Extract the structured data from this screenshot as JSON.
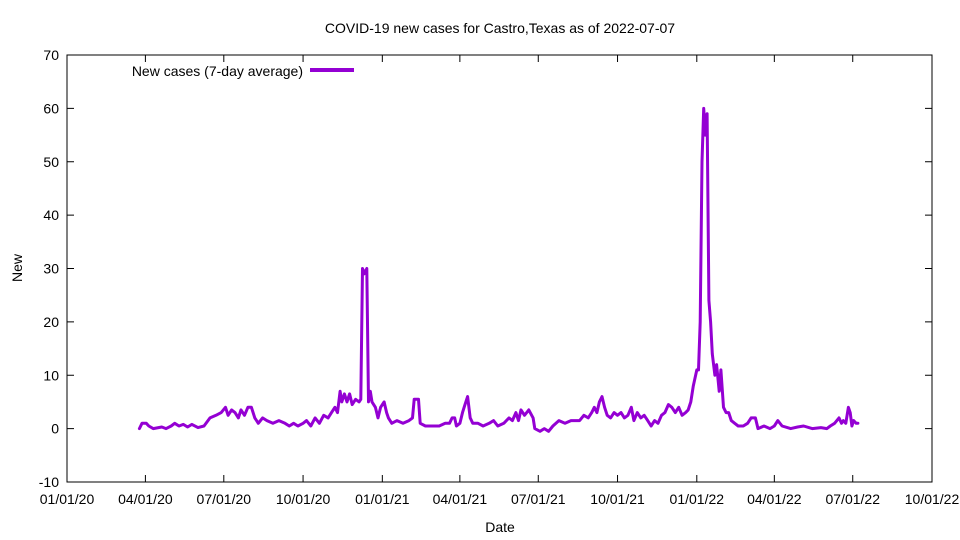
{
  "chart_data": {
    "type": "line",
    "title": "COVID-19 new cases for Castro,Texas as of 2022-07-07",
    "xlabel": "Date",
    "ylabel": "New",
    "xlim": [
      "2020-01-01",
      "2022-10-01"
    ],
    "ylim": [
      -10,
      70
    ],
    "grid": false,
    "legend_position": "top-left",
    "x_ticks": [
      {
        "date": "2020-01-01",
        "label": "01/01/20"
      },
      {
        "date": "2020-04-01",
        "label": "04/01/20"
      },
      {
        "date": "2020-07-01",
        "label": "07/01/20"
      },
      {
        "date": "2020-10-01",
        "label": "10/01/20"
      },
      {
        "date": "2021-01-01",
        "label": "01/01/21"
      },
      {
        "date": "2021-04-01",
        "label": "04/01/21"
      },
      {
        "date": "2021-07-01",
        "label": "07/01/21"
      },
      {
        "date": "2021-10-01",
        "label": "10/01/21"
      },
      {
        "date": "2022-01-01",
        "label": "01/01/22"
      },
      {
        "date": "2022-04-01",
        "label": "04/01/22"
      },
      {
        "date": "2022-07-01",
        "label": "07/01/22"
      },
      {
        "date": "2022-10-01",
        "label": "10/01/22"
      }
    ],
    "y_ticks": [
      -10,
      0,
      10,
      20,
      30,
      40,
      50,
      60,
      70
    ],
    "series": [
      {
        "name": "New cases (7-day average)",
        "color": "#9400d3",
        "points": [
          [
            "2020-03-25",
            0
          ],
          [
            "2020-03-28",
            1
          ],
          [
            "2020-04-02",
            1
          ],
          [
            "2020-04-05",
            0.5
          ],
          [
            "2020-04-10",
            0
          ],
          [
            "2020-04-20",
            0.3
          ],
          [
            "2020-04-25",
            0
          ],
          [
            "2020-05-01",
            0.5
          ],
          [
            "2020-05-05",
            1
          ],
          [
            "2020-05-10",
            0.5
          ],
          [
            "2020-05-15",
            0.8
          ],
          [
            "2020-05-20",
            0.3
          ],
          [
            "2020-05-25",
            0.8
          ],
          [
            "2020-06-01",
            0.2
          ],
          [
            "2020-06-08",
            0.5
          ],
          [
            "2020-06-15",
            2
          ],
          [
            "2020-06-22",
            2.5
          ],
          [
            "2020-06-28",
            3
          ],
          [
            "2020-07-03",
            4
          ],
          [
            "2020-07-06",
            2.5
          ],
          [
            "2020-07-10",
            3.5
          ],
          [
            "2020-07-14",
            3
          ],
          [
            "2020-07-18",
            2
          ],
          [
            "2020-07-21",
            3.5
          ],
          [
            "2020-07-25",
            2.5
          ],
          [
            "2020-07-29",
            4
          ],
          [
            "2020-08-02",
            4
          ],
          [
            "2020-08-06",
            2
          ],
          [
            "2020-08-10",
            1
          ],
          [
            "2020-08-15",
            2
          ],
          [
            "2020-08-20",
            1.5
          ],
          [
            "2020-08-27",
            1
          ],
          [
            "2020-09-03",
            1.5
          ],
          [
            "2020-09-10",
            1
          ],
          [
            "2020-09-15",
            0.5
          ],
          [
            "2020-09-20",
            1
          ],
          [
            "2020-09-25",
            0.5
          ],
          [
            "2020-10-01",
            1
          ],
          [
            "2020-10-05",
            1.5
          ],
          [
            "2020-10-10",
            0.5
          ],
          [
            "2020-10-15",
            2
          ],
          [
            "2020-10-20",
            1
          ],
          [
            "2020-10-25",
            2.5
          ],
          [
            "2020-10-30",
            2
          ],
          [
            "2020-11-03",
            3
          ],
          [
            "2020-11-07",
            4
          ],
          [
            "2020-11-10",
            3
          ],
          [
            "2020-11-13",
            7
          ],
          [
            "2020-11-15",
            5
          ],
          [
            "2020-11-18",
            6.5
          ],
          [
            "2020-11-21",
            5
          ],
          [
            "2020-11-24",
            6.5
          ],
          [
            "2020-11-27",
            4.5
          ],
          [
            "2020-12-01",
            5.5
          ],
          [
            "2020-12-05",
            5
          ],
          [
            "2020-12-07",
            5.5
          ],
          [
            "2020-12-09",
            30
          ],
          [
            "2020-12-11",
            29
          ],
          [
            "2020-12-14",
            30
          ],
          [
            "2020-12-16",
            5
          ],
          [
            "2020-12-18",
            7
          ],
          [
            "2020-12-20",
            5
          ],
          [
            "2020-12-24",
            4
          ],
          [
            "2020-12-27",
            2
          ],
          [
            "2020-12-30",
            4
          ],
          [
            "2021-01-03",
            5
          ],
          [
            "2021-01-06",
            3
          ],
          [
            "2021-01-08",
            2
          ],
          [
            "2021-01-12",
            1
          ],
          [
            "2021-01-18",
            1.5
          ],
          [
            "2021-01-25",
            1
          ],
          [
            "2021-02-01",
            1.5
          ],
          [
            "2021-02-05",
            2
          ],
          [
            "2021-02-07",
            5.5
          ],
          [
            "2021-02-12",
            5.5
          ],
          [
            "2021-02-14",
            1
          ],
          [
            "2021-02-20",
            0.5
          ],
          [
            "2021-02-28",
            0.5
          ],
          [
            "2021-03-08",
            0.5
          ],
          [
            "2021-03-15",
            1
          ],
          [
            "2021-03-20",
            1
          ],
          [
            "2021-03-23",
            2
          ],
          [
            "2021-03-26",
            2
          ],
          [
            "2021-03-28",
            0.5
          ],
          [
            "2021-04-01",
            1
          ],
          [
            "2021-04-04",
            3
          ],
          [
            "2021-04-07",
            4.5
          ],
          [
            "2021-04-10",
            6
          ],
          [
            "2021-04-13",
            2
          ],
          [
            "2021-04-16",
            1
          ],
          [
            "2021-04-22",
            1
          ],
          [
            "2021-04-28",
            0.5
          ],
          [
            "2021-05-05",
            1
          ],
          [
            "2021-05-10",
            1.5
          ],
          [
            "2021-05-15",
            0.5
          ],
          [
            "2021-05-22",
            1
          ],
          [
            "2021-05-28",
            2
          ],
          [
            "2021-06-01",
            1.5
          ],
          [
            "2021-06-05",
            3
          ],
          [
            "2021-06-08",
            1.5
          ],
          [
            "2021-06-11",
            3.5
          ],
          [
            "2021-06-15",
            2.5
          ],
          [
            "2021-06-20",
            3.5
          ],
          [
            "2021-06-25",
            2
          ],
          [
            "2021-06-27",
            0
          ],
          [
            "2021-07-03",
            -0.5
          ],
          [
            "2021-07-08",
            0
          ],
          [
            "2021-07-13",
            -0.5
          ],
          [
            "2021-07-18",
            0.5
          ],
          [
            "2021-07-25",
            1.5
          ],
          [
            "2021-08-01",
            1
          ],
          [
            "2021-08-08",
            1.5
          ],
          [
            "2021-08-13",
            1.5
          ],
          [
            "2021-08-18",
            1.5
          ],
          [
            "2021-08-23",
            2.5
          ],
          [
            "2021-08-28",
            2
          ],
          [
            "2021-09-01",
            3
          ],
          [
            "2021-09-04",
            4
          ],
          [
            "2021-09-07",
            3
          ],
          [
            "2021-09-10",
            5
          ],
          [
            "2021-09-13",
            6
          ],
          [
            "2021-09-16",
            4
          ],
          [
            "2021-09-19",
            2.5
          ],
          [
            "2021-09-23",
            2
          ],
          [
            "2021-09-27",
            3
          ],
          [
            "2021-10-01",
            2.5
          ],
          [
            "2021-10-05",
            3
          ],
          [
            "2021-10-09",
            2
          ],
          [
            "2021-10-13",
            2.5
          ],
          [
            "2021-10-17",
            4
          ],
          [
            "2021-10-20",
            1.5
          ],
          [
            "2021-10-24",
            3
          ],
          [
            "2021-10-28",
            2
          ],
          [
            "2021-11-01",
            2.5
          ],
          [
            "2021-11-05",
            1.5
          ],
          [
            "2021-11-09",
            0.5
          ],
          [
            "2021-11-13",
            1.5
          ],
          [
            "2021-11-17",
            1
          ],
          [
            "2021-11-21",
            2.5
          ],
          [
            "2021-11-25",
            3
          ],
          [
            "2021-11-29",
            4.5
          ],
          [
            "2021-12-03",
            4
          ],
          [
            "2021-12-07",
            3
          ],
          [
            "2021-12-11",
            4
          ],
          [
            "2021-12-15",
            2.5
          ],
          [
            "2021-12-19",
            3
          ],
          [
            "2021-12-22",
            3.5
          ],
          [
            "2021-12-25",
            5
          ],
          [
            "2021-12-28",
            8
          ],
          [
            "2022-01-01",
            11
          ],
          [
            "2022-01-03",
            11
          ],
          [
            "2022-01-05",
            20
          ],
          [
            "2022-01-07",
            50
          ],
          [
            "2022-01-09",
            60
          ],
          [
            "2022-01-11",
            55
          ],
          [
            "2022-01-13",
            59
          ],
          [
            "2022-01-15",
            24
          ],
          [
            "2022-01-17",
            20
          ],
          [
            "2022-01-19",
            14
          ],
          [
            "2022-01-22",
            10
          ],
          [
            "2022-01-24",
            12
          ],
          [
            "2022-01-27",
            7
          ],
          [
            "2022-01-29",
            11
          ],
          [
            "2022-02-01",
            4
          ],
          [
            "2022-02-04",
            3
          ],
          [
            "2022-02-07",
            3
          ],
          [
            "2022-02-10",
            1.5
          ],
          [
            "2022-02-14",
            1
          ],
          [
            "2022-02-18",
            0.5
          ],
          [
            "2022-02-24",
            0.5
          ],
          [
            "2022-03-01",
            1
          ],
          [
            "2022-03-05",
            2
          ],
          [
            "2022-03-10",
            2
          ],
          [
            "2022-03-13",
            0
          ],
          [
            "2022-03-20",
            0.5
          ],
          [
            "2022-03-27",
            0
          ],
          [
            "2022-04-01",
            0.5
          ],
          [
            "2022-04-05",
            1.5
          ],
          [
            "2022-04-10",
            0.5
          ],
          [
            "2022-04-20",
            0
          ],
          [
            "2022-04-28",
            0.3
          ],
          [
            "2022-05-05",
            0.5
          ],
          [
            "2022-05-15",
            0
          ],
          [
            "2022-05-25",
            0.2
          ],
          [
            "2022-06-01",
            0
          ],
          [
            "2022-06-05",
            0.5
          ],
          [
            "2022-06-10",
            1
          ],
          [
            "2022-06-15",
            2
          ],
          [
            "2022-06-18",
            1
          ],
          [
            "2022-06-20",
            1.5
          ],
          [
            "2022-06-23",
            1
          ],
          [
            "2022-06-26",
            4
          ],
          [
            "2022-06-28",
            3
          ],
          [
            "2022-06-30",
            0.5
          ],
          [
            "2022-07-02",
            1.5
          ],
          [
            "2022-07-05",
            1
          ],
          [
            "2022-07-07",
            1
          ]
        ]
      }
    ]
  }
}
